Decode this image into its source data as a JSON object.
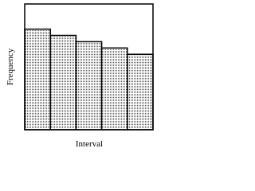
{
  "chart_data": {
    "type": "histogram",
    "bins": [
      0,
      1,
      2,
      3,
      4,
      5
    ],
    "values": [
      80,
      75,
      70,
      65,
      60
    ],
    "color": "#555555",
    "xlim": [
      0,
      5
    ],
    "ylim": [
      0,
      100
    ],
    "x_label": "Interval",
    "y_label": "Frequency"
  }
}
